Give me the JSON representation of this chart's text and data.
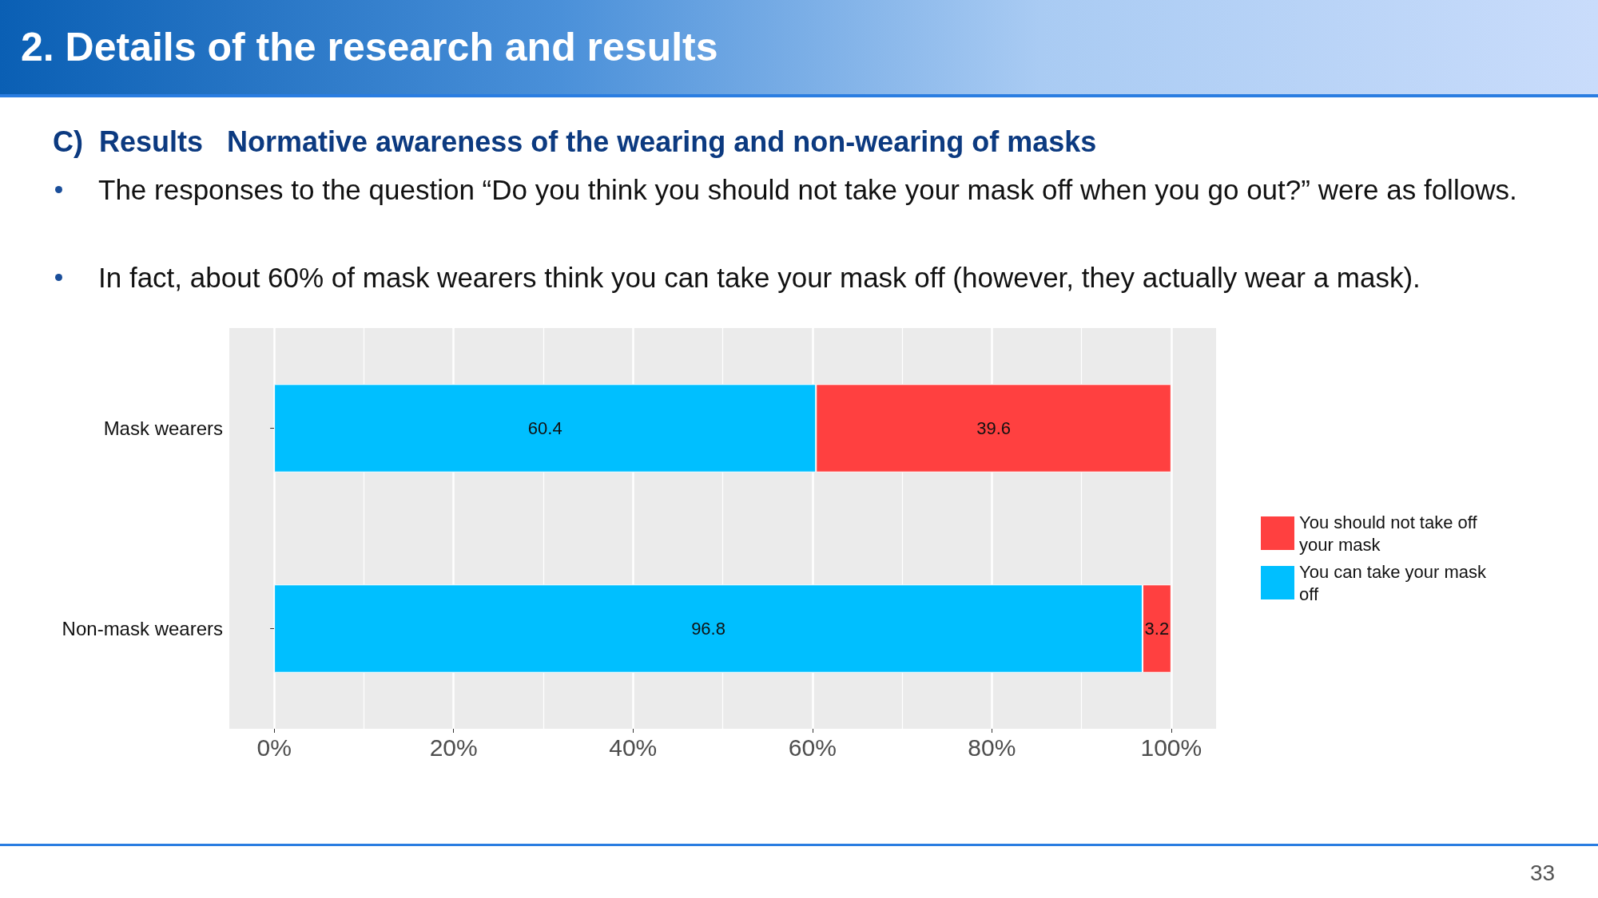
{
  "chart_data": {
    "type": "bar",
    "orientation": "horizontal",
    "stacked": true,
    "title": "2.  Details of the research and results",
    "subtitle": "C)  Results   Normative awareness of the wearing and non-wearing of masks",
    "annotations": [
      "The responses to the question “Do you think you should not take your mask off when you go out?” were as follows.",
      "In fact, about 60% of mask wearers think you can take your mask off (however, they actually wear a mask).",
      "33"
    ],
    "categories": [
      "Mask wearers",
      "Non-mask wearers"
    ],
    "series": [
      {
        "name": "You can take your mask off",
        "color": "#00bfff",
        "values": [
          60.4,
          96.8
        ]
      },
      {
        "name": "You should not take off your mask",
        "color": "#ff4040",
        "values": [
          39.6,
          3.2
        ]
      }
    ],
    "xlim": [
      -5,
      105
    ],
    "xticks": [
      {
        "value": 0,
        "label": "0%"
      },
      {
        "value": 20,
        "label": "20%"
      },
      {
        "value": 40,
        "label": "40%"
      },
      {
        "value": 60,
        "label": "60%"
      },
      {
        "value": 80,
        "label": "80%"
      },
      {
        "value": 100,
        "label": "100%"
      }
    ],
    "grid": true,
    "legend": "right",
    "data_labels": true
  }
}
